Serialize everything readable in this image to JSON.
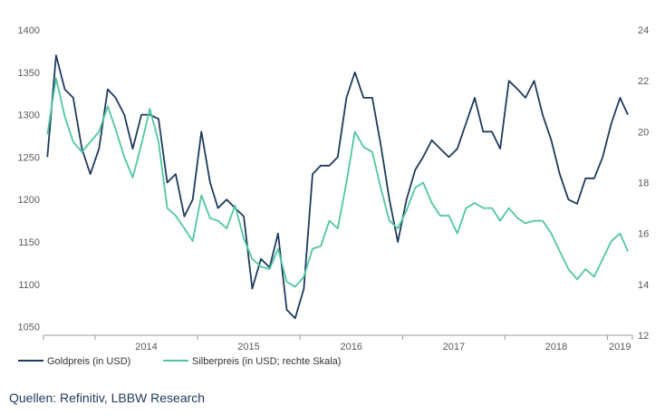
{
  "source_text": "Quellen: Refinitiv, LBBW Research",
  "chart_data": {
    "type": "line",
    "x_range": [
      "2013-07-01",
      "2019-03-31"
    ],
    "x_tick_labels": [
      "2014",
      "2015",
      "2016",
      "2017",
      "2018",
      "2019"
    ],
    "y_left": {
      "range": [
        1040,
        1400
      ],
      "ticks": [
        1050,
        1100,
        1150,
        1200,
        1250,
        1300,
        1350,
        1400
      ]
    },
    "y_right": {
      "range": [
        12,
        24
      ],
      "ticks": [
        12,
        14,
        16,
        18,
        20,
        22,
        24
      ]
    },
    "grid": false,
    "legend_position": "bottom-left",
    "colors": {
      "gold": "#1f3a5f",
      "silver": "#4fc7a0"
    },
    "series": [
      {
        "name": "Goldpreis (in USD)",
        "axis": "left",
        "x": [
          "2013-07",
          "2013-08",
          "2013-09",
          "2013-10",
          "2013-11",
          "2013-12",
          "2014-01",
          "2014-02",
          "2014-03",
          "2014-04",
          "2014-05",
          "2014-06",
          "2014-07",
          "2014-08",
          "2014-09",
          "2014-10",
          "2014-11",
          "2014-12",
          "2015-01",
          "2015-02",
          "2015-03",
          "2015-04",
          "2015-05",
          "2015-06",
          "2015-07",
          "2015-08",
          "2015-09",
          "2015-10",
          "2015-11",
          "2015-12",
          "2016-01",
          "2016-02",
          "2016-03",
          "2016-04",
          "2016-05",
          "2016-06",
          "2016-07",
          "2016-08",
          "2016-09",
          "2016-10",
          "2016-11",
          "2016-12",
          "2017-01",
          "2017-02",
          "2017-03",
          "2017-04",
          "2017-05",
          "2017-06",
          "2017-07",
          "2017-08",
          "2017-09",
          "2017-10",
          "2017-11",
          "2017-12",
          "2018-01",
          "2018-02",
          "2018-03",
          "2018-04",
          "2018-05",
          "2018-06",
          "2018-07",
          "2018-08",
          "2018-09",
          "2018-10",
          "2018-11",
          "2018-12",
          "2019-01",
          "2019-02",
          "2019-03"
        ],
        "values": [
          1250,
          1370,
          1330,
          1320,
          1260,
          1230,
          1260,
          1330,
          1320,
          1300,
          1260,
          1300,
          1300,
          1295,
          1220,
          1230,
          1180,
          1200,
          1280,
          1220,
          1190,
          1200,
          1190,
          1180,
          1095,
          1130,
          1120,
          1160,
          1070,
          1060,
          1095,
          1230,
          1240,
          1240,
          1250,
          1320,
          1350,
          1320,
          1320,
          1265,
          1200,
          1150,
          1200,
          1235,
          1250,
          1270,
          1260,
          1250,
          1260,
          1290,
          1320,
          1280,
          1280,
          1260,
          1340,
          1330,
          1320,
          1340,
          1300,
          1270,
          1230,
          1200,
          1195,
          1225,
          1225,
          1250,
          1290,
          1320,
          1300
        ]
      },
      {
        "name": "Silberpreis (in USD; rechte Skala)",
        "axis": "right",
        "x": [
          "2013-07",
          "2013-08",
          "2013-09",
          "2013-10",
          "2013-11",
          "2013-12",
          "2014-01",
          "2014-02",
          "2014-03",
          "2014-04",
          "2014-05",
          "2014-06",
          "2014-07",
          "2014-08",
          "2014-09",
          "2014-10",
          "2014-11",
          "2014-12",
          "2015-01",
          "2015-02",
          "2015-03",
          "2015-04",
          "2015-05",
          "2015-06",
          "2015-07",
          "2015-08",
          "2015-09",
          "2015-10",
          "2015-11",
          "2015-12",
          "2016-01",
          "2016-02",
          "2016-03",
          "2016-04",
          "2016-05",
          "2016-06",
          "2016-07",
          "2016-08",
          "2016-09",
          "2016-10",
          "2016-11",
          "2016-12",
          "2017-01",
          "2017-02",
          "2017-03",
          "2017-04",
          "2017-05",
          "2017-06",
          "2017-07",
          "2017-08",
          "2017-09",
          "2017-10",
          "2017-11",
          "2017-12",
          "2018-01",
          "2018-02",
          "2018-03",
          "2018-04",
          "2018-05",
          "2018-06",
          "2018-07",
          "2018-08",
          "2018-09",
          "2018-10",
          "2018-11",
          "2018-12",
          "2019-01",
          "2019-02",
          "2019-03"
        ],
        "values": [
          19.9,
          22.1,
          20.6,
          19.6,
          19.2,
          19.6,
          20.0,
          21.0,
          20.1,
          19.0,
          18.2,
          19.5,
          20.9,
          19.6,
          17.0,
          16.7,
          16.2,
          15.7,
          17.5,
          16.6,
          16.5,
          16.2,
          17.1,
          15.8,
          15.0,
          14.7,
          14.6,
          15.4,
          14.1,
          13.9,
          14.3,
          15.4,
          15.5,
          16.5,
          16.2,
          18.0,
          20.0,
          19.4,
          19.2,
          17.8,
          16.5,
          16.2,
          16.9,
          17.8,
          18.0,
          17.2,
          16.7,
          16.7,
          16.0,
          17.0,
          17.2,
          17.0,
          17.0,
          16.5,
          17.0,
          16.6,
          16.4,
          16.5,
          16.5,
          16.0,
          15.3,
          14.6,
          14.2,
          14.6,
          14.3,
          15.0,
          15.7,
          16.0,
          15.3
        ]
      }
    ]
  }
}
